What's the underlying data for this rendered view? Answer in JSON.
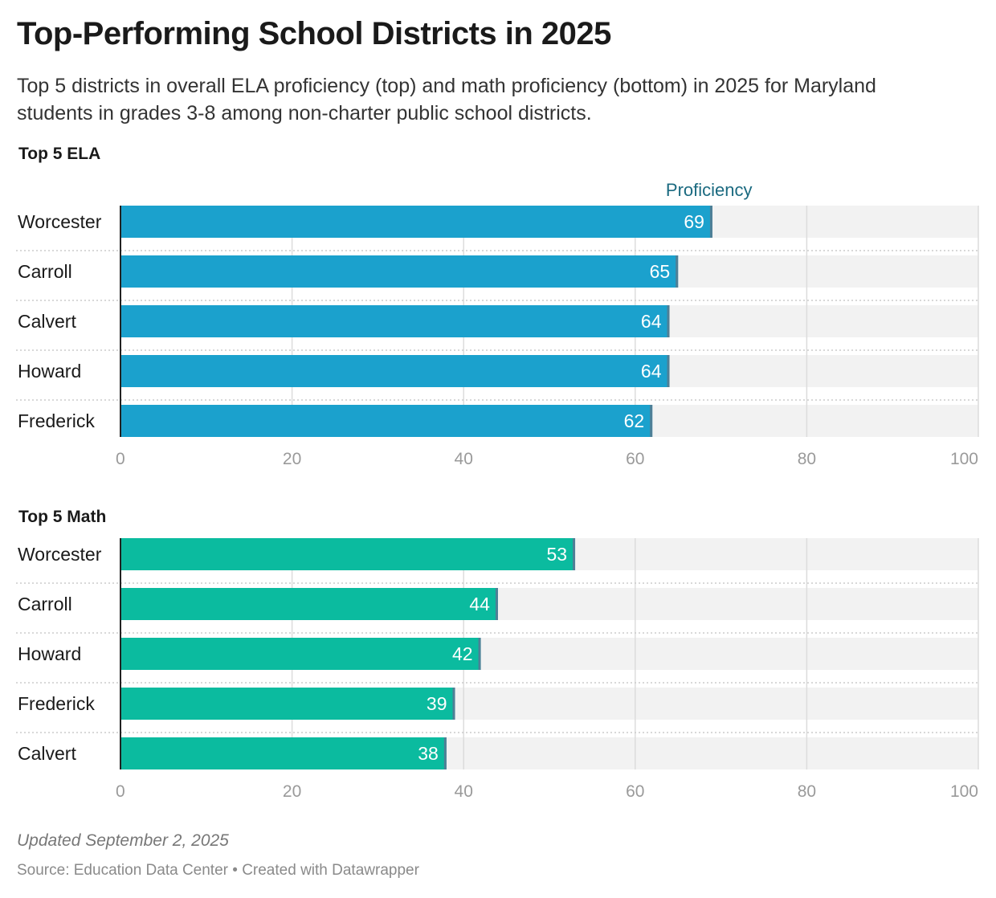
{
  "title": "Top-Performing School Districts in 2025",
  "subtitle": "Top 5 districts in overall ELA proficiency (top) and math proficiency (bottom) in 2025 for Maryland students in grades 3-8 among non-charter public school districts.",
  "footer": {
    "updated": "Updated September 2, 2025",
    "source": "Source: Education Data Center • Created with Datawrapper"
  },
  "colors": {
    "ela": "#1ba1cd",
    "math": "#0bbb9f",
    "track": "#f2f2f2",
    "marker": "#4f7f96",
    "legend": "#1b6a80"
  },
  "chart_data": [
    {
      "type": "bar",
      "title": "Top 5 ELA",
      "legend": "Proficiency",
      "categories": [
        "Worcester",
        "Carroll",
        "Calvert",
        "Howard",
        "Frederick"
      ],
      "values": [
        69,
        65,
        64,
        64,
        62
      ],
      "xlim": [
        0,
        100
      ],
      "xticks": [
        0,
        20,
        40,
        60,
        80,
        100
      ],
      "orientation": "horizontal"
    },
    {
      "type": "bar",
      "title": "Top 5 Math",
      "categories": [
        "Worcester",
        "Carroll",
        "Howard",
        "Frederick",
        "Calvert"
      ],
      "values": [
        53,
        44,
        42,
        39,
        38
      ],
      "xlim": [
        0,
        100
      ],
      "xticks": [
        0,
        20,
        40,
        60,
        80,
        100
      ],
      "orientation": "horizontal"
    }
  ]
}
